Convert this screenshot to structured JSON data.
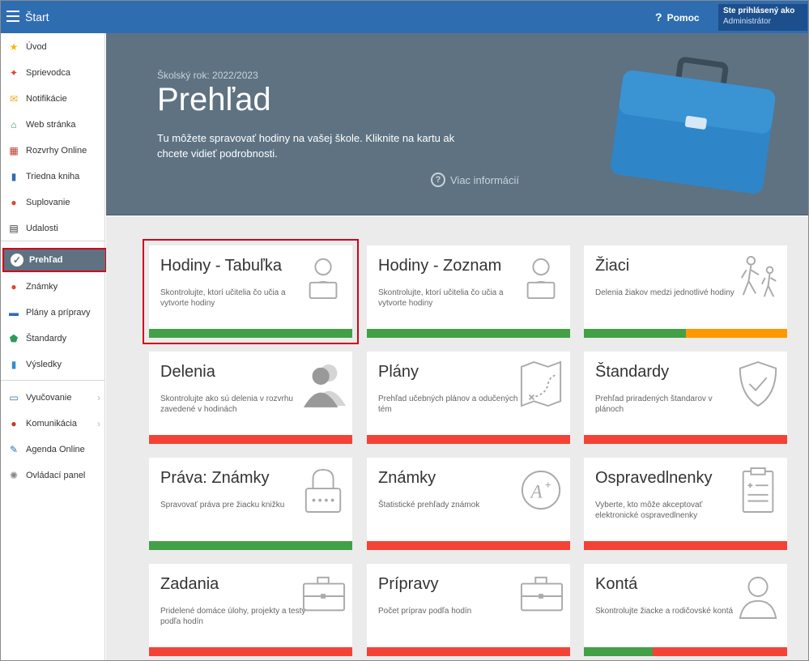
{
  "topbar": {
    "app_title": "Štart",
    "help_label": "Pomoc",
    "help_icon": "question-icon",
    "user_line1": "Ste prihlásený ako",
    "user_line2": "Administrátor"
  },
  "sidebar": {
    "items": [
      {
        "label": "Úvod",
        "icon": "star-icon",
        "color": "#f5b800"
      },
      {
        "label": "Sprievodca",
        "icon": "wand-icon",
        "color": "#e0452f"
      },
      {
        "label": "Notifikácie",
        "icon": "envelope-icon",
        "color": "#f5a623"
      },
      {
        "label": "Web stránka",
        "icon": "home-icon",
        "color": "#2e9a5b"
      },
      {
        "label": "Rozvrhy Online",
        "icon": "calendar-grid-icon",
        "color": "#c0392b"
      },
      {
        "label": "Triedna kniha",
        "icon": "book-icon",
        "color": "#2f6db1"
      },
      {
        "label": "Suplovanie",
        "icon": "person-icon",
        "color": "#e0452f"
      },
      {
        "label": "Udalosti",
        "icon": "calendar-icon",
        "color": "#333333"
      },
      {
        "label": "Prehľad",
        "icon": "check-circle-icon",
        "color": "#ffffff"
      },
      {
        "label": "Známky",
        "icon": "grade-icon",
        "color": "#e0452f"
      },
      {
        "label": "Plány a prípravy",
        "icon": "briefcase-icon",
        "color": "#2f6db1"
      },
      {
        "label": "Štandardy",
        "icon": "shield-icon",
        "color": "#2e9a5b"
      },
      {
        "label": "Výsledky",
        "icon": "bar-chart-icon",
        "color": "#2f8fd0"
      },
      {
        "label": "Vyučovanie",
        "icon": "open-book-icon",
        "color": "#2f6db1"
      },
      {
        "label": "Komunikácia",
        "icon": "chat-icon",
        "color": "#c0392b"
      },
      {
        "label": "Agenda Online",
        "icon": "pen-icon",
        "color": "#2f6db1"
      },
      {
        "label": "Ovládací panel",
        "icon": "gear-icon",
        "color": "#888888"
      }
    ]
  },
  "banner": {
    "school_year": "Školský rok: 2022/2023",
    "title": "Prehľad",
    "description": "Tu môžete spravovať hodiny na vašej škole. Kliknite na kartu ak chcete vidieť podrobnosti.",
    "more_info": "Viac informácií"
  },
  "cards": [
    {
      "title": "Hodiny - Tabuľka",
      "desc": "Skontrolujte, ktorí učitelia čo učia a vytvorte hodiny",
      "icon": "teacher-laptop-icon",
      "status": [
        {
          "fraction": 1.0,
          "color": "#43a047"
        }
      ]
    },
    {
      "title": "Hodiny - Zoznam",
      "desc": "Skontrolujte, ktorí učitelia čo učia a vytvorte hodiny",
      "icon": "teacher-laptop-icon",
      "status": [
        {
          "fraction": 1.0,
          "color": "#43a047"
        }
      ]
    },
    {
      "title": "Žiaci",
      "desc": "Delenia žiakov medzi jednotlivé hodiny",
      "icon": "hiking-students-icon",
      "status": [
        {
          "fraction": 0.5,
          "color": "#43a047"
        },
        {
          "fraction": 0.5,
          "color": "#ff9800"
        }
      ]
    },
    {
      "title": "Delenia",
      "desc": "Skontrolujte ako sú delenia v rozvrhu zavedené v hodinách",
      "icon": "group-icon",
      "status": [
        {
          "fraction": 1.0,
          "color": "#f44336"
        }
      ]
    },
    {
      "title": "Plány",
      "desc": "Prehľad učebných plánov a odučených tém",
      "icon": "map-icon",
      "status": [
        {
          "fraction": 1.0,
          "color": "#f44336"
        }
      ]
    },
    {
      "title": "Štandardy",
      "desc": "Prehľad priradených štandarov v plánoch",
      "icon": "shield-check-icon",
      "status": [
        {
          "fraction": 1.0,
          "color": "#f44336"
        }
      ]
    },
    {
      "title": "Práva: Známky",
      "desc": "Spravovať práva pre žiacku knižku",
      "icon": "lock-icon",
      "status": [
        {
          "fraction": 1.0,
          "color": "#43a047"
        }
      ]
    },
    {
      "title": "Známky",
      "desc": "Štatistické prehľady známok",
      "icon": "a-plus-icon",
      "status": [
        {
          "fraction": 1.0,
          "color": "#f44336"
        }
      ]
    },
    {
      "title": "Ospravedlnenky",
      "desc": "Vyberte, kto môže akceptovať elektronické ospravedlnenky",
      "icon": "clipboard-icon",
      "status": [
        {
          "fraction": 1.0,
          "color": "#f44336"
        }
      ]
    },
    {
      "title": "Zadania",
      "desc": "Pridelené domáce úlohy, projekty a testy podľa hodín",
      "icon": "suitcase-icon",
      "status": [
        {
          "fraction": 1.0,
          "color": "#f44336"
        }
      ]
    },
    {
      "title": "Prípravy",
      "desc": "Počet príprav podľa hodín",
      "icon": "suitcase-icon",
      "status": [
        {
          "fraction": 1.0,
          "color": "#f44336"
        }
      ]
    },
    {
      "title": "Kontá",
      "desc": "Skontrolujte žiacke a rodičovské kontá",
      "icon": "user-outline-icon",
      "status": [
        {
          "fraction": 0.34,
          "color": "#43a047"
        },
        {
          "fraction": 0.66,
          "color": "#f44336"
        }
      ]
    }
  ]
}
